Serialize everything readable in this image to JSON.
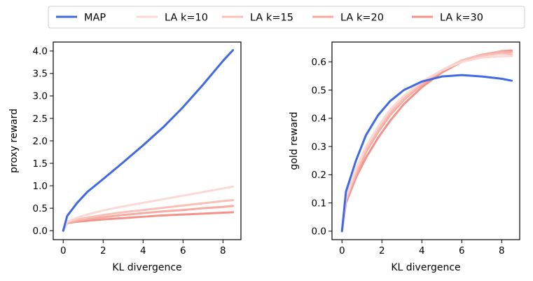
{
  "legend": {
    "entries": [
      "MAP",
      "LA k=10",
      "LA k=15",
      "LA k=20",
      "LA k=30"
    ]
  },
  "colors": {
    "MAP": "#4169e1",
    "LA k=10": "#fcd8d3",
    "LA k=15": "#f9c0b8",
    "LA k=20": "#f6aaa1",
    "LA k=30": "#f2938a"
  },
  "chart_data": [
    {
      "type": "line",
      "title": "",
      "xlabel": "KL divergence",
      "ylabel": "proxy reward",
      "xlim": [
        -0.5,
        8.9
      ],
      "ylim": [
        -0.2,
        4.2
      ],
      "xticks": [
        0,
        2,
        4,
        6,
        8
      ],
      "yticks": [
        0.0,
        0.5,
        1.0,
        1.5,
        2.0,
        2.5,
        3.0,
        3.5,
        4.0
      ],
      "ytick_labels": [
        "0.0",
        "0.5",
        "1.0",
        "1.5",
        "2.0",
        "2.5",
        "3.0",
        "3.5",
        "4.0"
      ],
      "series": [
        {
          "name": "MAP",
          "x": [
            0,
            0.2,
            0.7,
            1.2,
            2.0,
            3.0,
            4.0,
            5.0,
            6.0,
            7.0,
            8.0,
            8.5
          ],
          "y": [
            0,
            0.33,
            0.62,
            0.86,
            1.15,
            1.52,
            1.9,
            2.3,
            2.75,
            3.25,
            3.78,
            4.02
          ]
        },
        {
          "name": "LA k=10",
          "x": [
            0,
            0.2,
            0.7,
            1.2,
            2.0,
            3.0,
            4.0,
            5.0,
            6.0,
            7.0,
            8.0,
            8.5
          ],
          "y": [
            0,
            0.2,
            0.29,
            0.36,
            0.45,
            0.54,
            0.62,
            0.7,
            0.78,
            0.86,
            0.94,
            0.98
          ]
        },
        {
          "name": "LA k=15",
          "x": [
            0,
            0.2,
            0.7,
            1.2,
            2.0,
            3.0,
            4.0,
            5.0,
            6.0,
            7.0,
            8.0,
            8.5
          ],
          "y": [
            0,
            0.19,
            0.25,
            0.29,
            0.35,
            0.41,
            0.46,
            0.51,
            0.56,
            0.61,
            0.66,
            0.68
          ]
        },
        {
          "name": "LA k=20",
          "x": [
            0,
            0.2,
            0.7,
            1.2,
            2.0,
            3.0,
            4.0,
            5.0,
            6.0,
            7.0,
            8.0,
            8.5
          ],
          "y": [
            0,
            0.18,
            0.22,
            0.26,
            0.3,
            0.35,
            0.39,
            0.43,
            0.46,
            0.5,
            0.53,
            0.55
          ]
        },
        {
          "name": "LA k=30",
          "x": [
            0,
            0.2,
            0.7,
            1.2,
            2.0,
            3.0,
            4.0,
            5.0,
            6.0,
            7.0,
            8.0,
            8.5
          ],
          "y": [
            0,
            0.17,
            0.2,
            0.22,
            0.25,
            0.28,
            0.31,
            0.34,
            0.36,
            0.38,
            0.4,
            0.41
          ]
        }
      ]
    },
    {
      "type": "line",
      "title": "",
      "xlabel": "KL divergence",
      "ylabel": "gold reward",
      "xlim": [
        -0.5,
        8.9
      ],
      "ylim": [
        -0.03,
        0.67
      ],
      "xticks": [
        0,
        2,
        4,
        6,
        8
      ],
      "yticks": [
        0.0,
        0.1,
        0.2,
        0.3,
        0.4,
        0.5,
        0.6
      ],
      "ytick_labels": [
        "0.0",
        "0.1",
        "0.2",
        "0.3",
        "0.4",
        "0.5",
        "0.6"
      ],
      "series": [
        {
          "name": "MAP",
          "x": [
            0,
            0.2,
            0.7,
            1.2,
            1.8,
            2.4,
            3.1,
            4.0,
            5.0,
            6.0,
            7.0,
            8.0,
            8.5
          ],
          "y": [
            0,
            0.14,
            0.25,
            0.34,
            0.41,
            0.46,
            0.5,
            0.53,
            0.548,
            0.553,
            0.548,
            0.54,
            0.533
          ]
        },
        {
          "name": "LA k=10",
          "x": [
            0,
            0.2,
            0.7,
            1.2,
            1.8,
            2.4,
            3.1,
            4.0,
            5.0,
            6.0,
            7.0,
            8.0,
            8.5
          ],
          "y": [
            0,
            0.12,
            0.22,
            0.3,
            0.37,
            0.43,
            0.48,
            0.53,
            0.57,
            0.6,
            0.615,
            0.62,
            0.62
          ]
        },
        {
          "name": "LA k=15",
          "x": [
            0,
            0.2,
            0.7,
            1.2,
            1.8,
            2.4,
            3.1,
            4.0,
            5.0,
            6.0,
            7.0,
            8.0,
            8.5
          ],
          "y": [
            0,
            0.115,
            0.21,
            0.29,
            0.36,
            0.42,
            0.47,
            0.525,
            0.57,
            0.605,
            0.622,
            0.63,
            0.627
          ]
        },
        {
          "name": "LA k=20",
          "x": [
            0,
            0.2,
            0.7,
            1.2,
            1.8,
            2.4,
            3.1,
            4.0,
            5.0,
            6.0,
            7.0,
            8.0,
            8.5
          ],
          "y": [
            0,
            0.11,
            0.2,
            0.28,
            0.35,
            0.41,
            0.465,
            0.52,
            0.567,
            0.605,
            0.625,
            0.637,
            0.635
          ]
        },
        {
          "name": "LA k=30",
          "x": [
            0,
            0.2,
            0.7,
            1.2,
            1.8,
            2.4,
            3.1,
            4.0,
            5.0,
            6.0,
            7.0,
            8.0,
            8.5
          ],
          "y": [
            0,
            0.1,
            0.19,
            0.26,
            0.33,
            0.39,
            0.45,
            0.51,
            0.562,
            0.6,
            0.622,
            0.638,
            0.64
          ]
        }
      ]
    }
  ]
}
